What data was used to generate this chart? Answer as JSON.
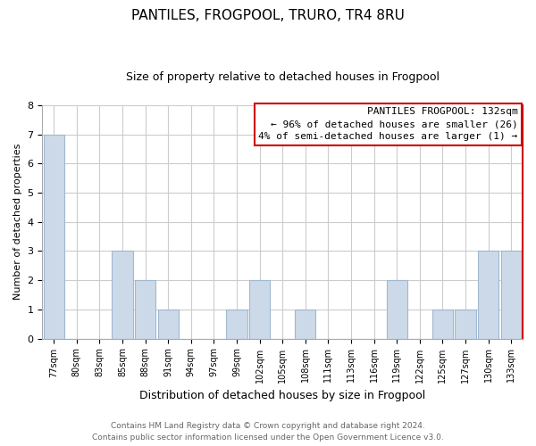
{
  "title": "PANTILES, FROGPOOL, TRURO, TR4 8RU",
  "subtitle": "Size of property relative to detached houses in Frogpool",
  "xlabel": "Distribution of detached houses by size in Frogpool",
  "ylabel": "Number of detached properties",
  "categories": [
    "77sqm",
    "80sqm",
    "83sqm",
    "85sqm",
    "88sqm",
    "91sqm",
    "94sqm",
    "97sqm",
    "99sqm",
    "102sqm",
    "105sqm",
    "108sqm",
    "111sqm",
    "113sqm",
    "116sqm",
    "119sqm",
    "122sqm",
    "125sqm",
    "127sqm",
    "130sqm",
    "133sqm"
  ],
  "values": [
    7,
    0,
    0,
    3,
    2,
    1,
    0,
    0,
    1,
    2,
    0,
    1,
    0,
    0,
    0,
    2,
    0,
    1,
    1,
    3,
    3
  ],
  "bar_color": "#ccd9e8",
  "bar_edge_color": "#a0b8d0",
  "highlight_line_color": "#cc0000",
  "ylim": [
    0,
    8
  ],
  "yticks": [
    0,
    1,
    2,
    3,
    4,
    5,
    6,
    7,
    8
  ],
  "legend_title": "PANTILES FROGPOOL: 132sqm",
  "legend_line1": "← 96% of detached houses are smaller (26)",
  "legend_line2": "4% of semi-detached houses are larger (1) →",
  "footer_line1": "Contains HM Land Registry data © Crown copyright and database right 2024.",
  "footer_line2": "Contains public sector information licensed under the Open Government Licence v3.0.",
  "background_color": "#ffffff",
  "grid_color": "#cccccc",
  "title_fontsize": 11,
  "subtitle_fontsize": 9,
  "ylabel_fontsize": 8,
  "xlabel_fontsize": 9,
  "tick_fontsize": 8,
  "xtick_fontsize": 7,
  "footer_fontsize": 6.5,
  "legend_fontsize": 8
}
